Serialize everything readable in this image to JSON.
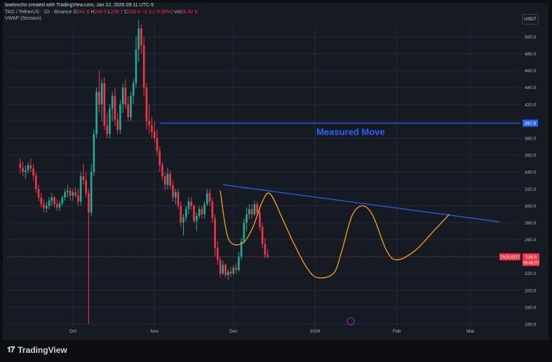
{
  "header": {
    "credit": "lawtoncho created with TradingView.com, Jan 22, 2026 09:11 UTC-5",
    "symbol": "TAO / TetherUS · 1D · Binance",
    "open_label": "O",
    "open_value": "241.9",
    "high_label": "H",
    "high_value": "248.9",
    "low_label": "L",
    "low_value": "238.7",
    "close_label": "C",
    "close_value": "239.6",
    "change": "−2.3 (−0.95%)",
    "vol_label": "Vol",
    "vol_value": "26.42 K",
    "indicator": "VWAP (Session)",
    "currency": "USDT"
  },
  "footer": {
    "logo_icon": "tradingview-logo-icon",
    "brand": "TradingView"
  },
  "colors": {
    "bg": "#161a23",
    "up": "#22ab94",
    "down": "#f23645",
    "resistance": "#2962ff",
    "pattern": "#f7a21b",
    "axis_text": "#b2b5be"
  },
  "chart_data": {
    "type": "candlestick",
    "title": "",
    "ylim": [
      155,
      512
    ],
    "yticks": [
      160,
      180,
      200,
      220,
      240,
      260,
      280,
      300,
      320,
      340,
      360,
      380,
      400,
      420,
      440,
      460,
      480,
      500
    ],
    "ytick_labels": [
      "160.0",
      "180.0",
      "200.0",
      "220.0",
      "240.0",
      "260.0",
      "280.0",
      "300.0",
      "320.0",
      "340.0",
      "360.0",
      "380.0",
      "400.0",
      "420.0",
      "440.0",
      "460.0",
      "480.0",
      "500.0"
    ],
    "xtick_labels": [
      "Oct",
      "Nov",
      "Dec",
      "2026",
      "Feb",
      "Mar"
    ],
    "xtick_dates": [
      "2025-10-01",
      "2025-11-01",
      "2025-12-01",
      "2026-01-01",
      "2026-02-01",
      "2026-03-01"
    ],
    "grid": true,
    "price_tag": {
      "symbol": "TAOUSDT",
      "value": "239.6",
      "countdown": "09:48:37"
    },
    "level_tag": {
      "value": "397.8"
    },
    "annotation": {
      "text": "Measured Move"
    },
    "candles_first_date": "2025-09-11",
    "candles_interval": "1D",
    "candles": [
      [
        350,
        356,
        338,
        345
      ],
      [
        345,
        352,
        335,
        340
      ],
      [
        340,
        348,
        332,
        342
      ],
      [
        342,
        352,
        338,
        348
      ],
      [
        348,
        356,
        340,
        344
      ],
      [
        344,
        350,
        330,
        336
      ],
      [
        336,
        340,
        315,
        320
      ],
      [
        320,
        325,
        305,
        310
      ],
      [
        310,
        315,
        298,
        302
      ],
      [
        302,
        308,
        292,
        297
      ],
      [
        297,
        305,
        292,
        300
      ],
      [
        300,
        310,
        296,
        306
      ],
      [
        306,
        315,
        300,
        310
      ],
      [
        310,
        312,
        298,
        302
      ],
      [
        302,
        308,
        294,
        298
      ],
      [
        298,
        306,
        294,
        303
      ],
      [
        303,
        312,
        300,
        310
      ],
      [
        310,
        320,
        306,
        316
      ],
      [
        316,
        325,
        310,
        318
      ],
      [
        318,
        322,
        306,
        312
      ],
      [
        312,
        320,
        306,
        316
      ],
      [
        316,
        322,
        310,
        312
      ],
      [
        312,
        320,
        300,
        305
      ],
      [
        305,
        340,
        300,
        335
      ],
      [
        335,
        350,
        325,
        330
      ],
      [
        330,
        340,
        310,
        315
      ],
      [
        315,
        320,
        160,
        292
      ],
      [
        292,
        350,
        288,
        340
      ],
      [
        340,
        390,
        335,
        385
      ],
      [
        385,
        440,
        380,
        435
      ],
      [
        435,
        460,
        410,
        420
      ],
      [
        420,
        450,
        400,
        445
      ],
      [
        445,
        452,
        390,
        395
      ],
      [
        395,
        410,
        380,
        385
      ],
      [
        385,
        420,
        380,
        415
      ],
      [
        415,
        435,
        400,
        430
      ],
      [
        430,
        440,
        395,
        402
      ],
      [
        402,
        410,
        385,
        390
      ],
      [
        390,
        425,
        385,
        420
      ],
      [
        420,
        445,
        410,
        440
      ],
      [
        440,
        450,
        415,
        420
      ],
      [
        420,
        430,
        400,
        405
      ],
      [
        405,
        435,
        400,
        430
      ],
      [
        430,
        450,
        420,
        445
      ],
      [
        445,
        500,
        440,
        485
      ],
      [
        485,
        520,
        470,
        510
      ],
      [
        510,
        515,
        480,
        490
      ],
      [
        490,
        500,
        430,
        440
      ],
      [
        440,
        445,
        390,
        400
      ],
      [
        400,
        420,
        385,
        395
      ],
      [
        395,
        405,
        380,
        388
      ],
      [
        388,
        400,
        375,
        380
      ],
      [
        380,
        390,
        360,
        365
      ],
      [
        365,
        370,
        340,
        348
      ],
      [
        348,
        352,
        330,
        335
      ],
      [
        335,
        340,
        318,
        325
      ],
      [
        325,
        345,
        320,
        338
      ],
      [
        338,
        342,
        320,
        324
      ],
      [
        324,
        330,
        305,
        310
      ],
      [
        310,
        320,
        302,
        316
      ],
      [
        316,
        320,
        296,
        300
      ],
      [
        300,
        305,
        275,
        280
      ],
      [
        280,
        290,
        265,
        286
      ],
      [
        286,
        300,
        282,
        296
      ],
      [
        296,
        310,
        290,
        305
      ],
      [
        305,
        310,
        295,
        300
      ],
      [
        300,
        302,
        280,
        282
      ],
      [
        282,
        292,
        270,
        288
      ],
      [
        288,
        300,
        285,
        296
      ],
      [
        296,
        300,
        285,
        290
      ],
      [
        290,
        305,
        285,
        302
      ],
      [
        302,
        320,
        300,
        315
      ],
      [
        315,
        320,
        300,
        305
      ],
      [
        305,
        310,
        280,
        285
      ],
      [
        285,
        290,
        240,
        250
      ],
      [
        250,
        258,
        230,
        236
      ],
      [
        236,
        240,
        215,
        220
      ],
      [
        220,
        235,
        218,
        230
      ],
      [
        230,
        232,
        215,
        218
      ],
      [
        218,
        225,
        212,
        222
      ],
      [
        222,
        228,
        216,
        220
      ],
      [
        220,
        230,
        218,
        227
      ],
      [
        227,
        232,
        220,
        224
      ],
      [
        224,
        245,
        222,
        240
      ],
      [
        240,
        262,
        236,
        258
      ],
      [
        258,
        285,
        255,
        280
      ],
      [
        280,
        298,
        270,
        290
      ],
      [
        290,
        302,
        284,
        296
      ],
      [
        296,
        302,
        285,
        290
      ],
      [
        290,
        306,
        288,
        302
      ],
      [
        302,
        305,
        288,
        292
      ],
      [
        292,
        300,
        270,
        275
      ],
      [
        275,
        280,
        250,
        255
      ],
      [
        255,
        262,
        238,
        242
      ],
      [
        242,
        249,
        238,
        239.6
      ]
    ],
    "resistance_line": {
      "from": {
        "date": "2025-11-27",
        "price": 325
      },
      "to": {
        "date": "2026-03-12",
        "price": 281
      }
    },
    "measured_move_level": {
      "from": {
        "date": "2025-11-03",
        "price": 397.8
      }
    },
    "pattern_curve": [
      [
        "2025-11-26",
        318
      ],
      [
        "2025-11-29",
        262
      ],
      [
        "2025-12-04",
        255
      ],
      [
        "2025-12-08",
        272
      ],
      [
        "2025-12-12",
        305
      ],
      [
        "2025-12-15",
        314
      ],
      [
        "2025-12-20",
        282
      ],
      [
        "2025-12-24",
        255
      ],
      [
        "2025-12-29",
        226
      ],
      [
        "2026-01-02",
        215
      ],
      [
        "2026-01-08",
        220
      ],
      [
        "2026-01-11",
        245
      ],
      [
        "2026-01-15",
        288
      ],
      [
        "2026-01-19",
        300
      ],
      [
        "2026-01-23",
        288
      ],
      [
        "2026-01-28",
        248
      ],
      [
        "2026-02-01",
        236
      ],
      [
        "2026-02-08",
        247
      ],
      [
        "2026-02-15",
        270
      ],
      [
        "2026-02-21",
        290
      ]
    ]
  }
}
